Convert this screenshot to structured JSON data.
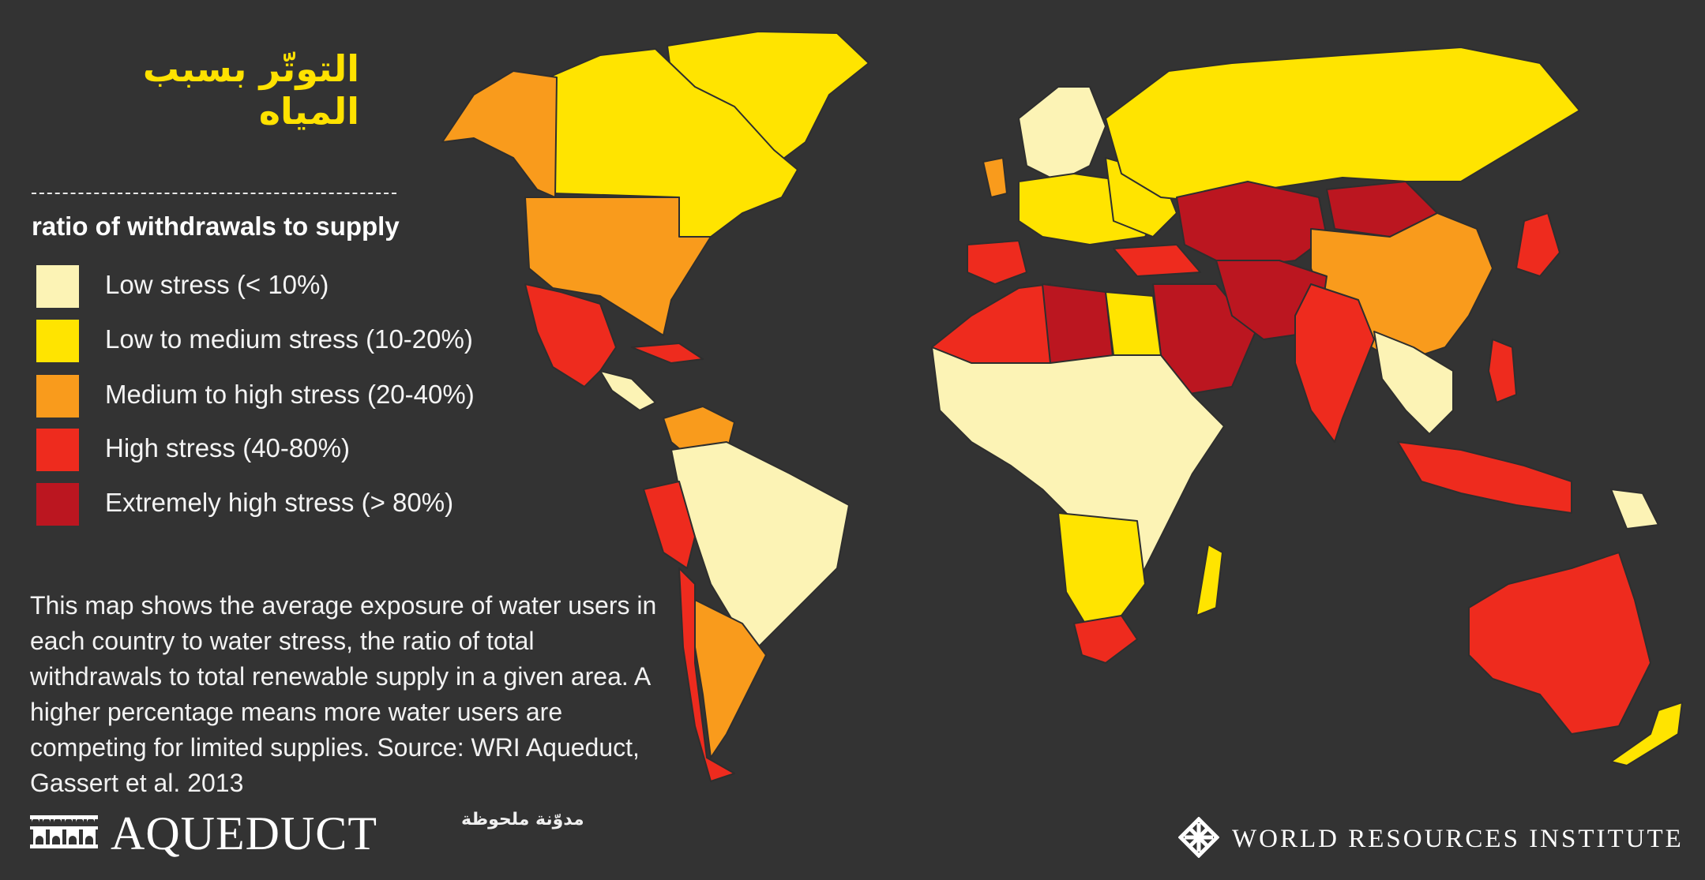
{
  "title": "التوتّر بسبب المياه",
  "legend": {
    "title": "ratio of withdrawals to supply",
    "items": [
      {
        "label": "Low stress (< 10%)",
        "color": "#fcf3b5"
      },
      {
        "label": "Low to medium stress (10-20%)",
        "color": "#ffe400"
      },
      {
        "label": "Medium to high stress (20-40%)",
        "color": "#f99b1c"
      },
      {
        "label": "High stress (40-80%)",
        "color": "#ee2b1e"
      },
      {
        "label": "Extremely high stress (> 80%)",
        "color": "#bb1620"
      }
    ]
  },
  "description": "This map shows the average exposure of water users in each country to water stress, the ratio of total withdrawals to total renewable supply in a given area. A higher percentage means more water users are competing for limited supplies. Source: WRI Aqueduct, Gassert et al. 2013",
  "logos": {
    "aqueduct": "AQUEDUCT",
    "watermark": "مدوّنة ملحوظة",
    "wri": "WORLD RESOURCES INSTITUTE"
  },
  "map": {
    "water_color": "#333333",
    "regions": [
      {
        "name": "Canada",
        "stress": "low-medium"
      },
      {
        "name": "Alaska",
        "stress": "medium-high"
      },
      {
        "name": "Greenland",
        "stress": "low-medium"
      },
      {
        "name": "United States",
        "stress": "medium-high"
      },
      {
        "name": "Mexico",
        "stress": "high"
      },
      {
        "name": "Central America",
        "stress": "low"
      },
      {
        "name": "Venezuela",
        "stress": "medium-high"
      },
      {
        "name": "Brazil",
        "stress": "low"
      },
      {
        "name": "Peru",
        "stress": "high"
      },
      {
        "name": "Argentina",
        "stress": "medium-high"
      },
      {
        "name": "Chile",
        "stress": "high"
      },
      {
        "name": "Russia",
        "stress": "low-medium"
      },
      {
        "name": "Northern Europe",
        "stress": "low"
      },
      {
        "name": "Western Europe",
        "stress": "low-medium"
      },
      {
        "name": "United Kingdom",
        "stress": "medium-high"
      },
      {
        "name": "Iberia",
        "stress": "high"
      },
      {
        "name": "Turkey",
        "stress": "high"
      },
      {
        "name": "North Africa",
        "stress": "high"
      },
      {
        "name": "Libya",
        "stress": "extremely-high"
      },
      {
        "name": "Egypt",
        "stress": "low-medium"
      },
      {
        "name": "Arabia",
        "stress": "extremely-high"
      },
      {
        "name": "Central Asia",
        "stress": "extremely-high"
      },
      {
        "name": "Mongolia",
        "stress": "extremely-high"
      },
      {
        "name": "China",
        "stress": "medium-high"
      },
      {
        "name": "India",
        "stress": "high"
      },
      {
        "name": "Southeast Asia",
        "stress": "low"
      },
      {
        "name": "Indonesia",
        "stress": "high"
      },
      {
        "name": "Japan",
        "stress": "high"
      },
      {
        "name": "Sub-Saharan Africa",
        "stress": "low"
      },
      {
        "name": "Southern Africa",
        "stress": "low-medium"
      },
      {
        "name": "South Africa",
        "stress": "high"
      },
      {
        "name": "Madagascar",
        "stress": "low-medium"
      },
      {
        "name": "Papua New Guinea",
        "stress": "low"
      },
      {
        "name": "Australia",
        "stress": "high"
      },
      {
        "name": "New Zealand",
        "stress": "low-medium"
      }
    ]
  }
}
